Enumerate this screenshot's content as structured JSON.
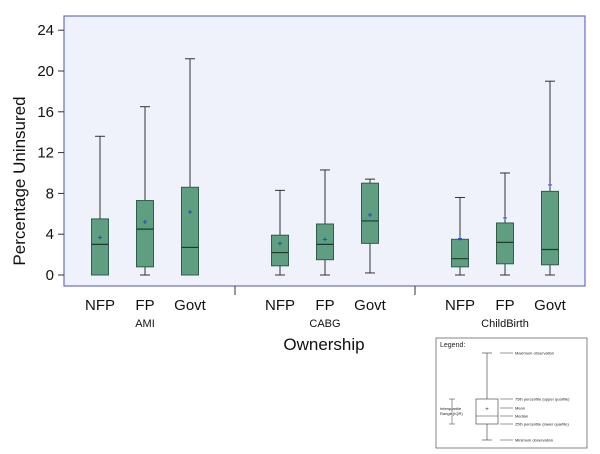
{
  "chart_data": {
    "type": "box",
    "xlabel": "Ownership",
    "ylabel": "Percentage  Uninsured",
    "ylim": [
      -1,
      25
    ],
    "yticks": [
      "0",
      "4",
      "8",
      "12",
      "16",
      "20",
      "24"
    ],
    "grid": false,
    "colors": {
      "plot_bg": "#eff1fb",
      "plot_border": "#6a6fbf",
      "box_fill": "#5f9e80",
      "box_edge": "#2f5f4a",
      "mean_marker": "#2244cc"
    },
    "groups": [
      {
        "label": "AMI",
        "boxes": [
          {
            "category": "NFP",
            "min": 0,
            "q1": 0,
            "median": 3.0,
            "q3": 5.5,
            "max": 13.6,
            "mean": 3.7
          },
          {
            "category": "FP",
            "min": 0,
            "q1": 0.8,
            "median": 4.5,
            "q3": 7.3,
            "max": 16.5,
            "mean": 5.2
          },
          {
            "category": "Govt",
            "min": 0,
            "q1": 0,
            "median": 2.7,
            "q3": 8.6,
            "max": 21.2,
            "mean": 6.2
          }
        ]
      },
      {
        "label": "CABG",
        "boxes": [
          {
            "category": "NFP",
            "min": 0,
            "q1": 0.9,
            "median": 2.2,
            "q3": 3.9,
            "max": 8.3,
            "mean": 3.1
          },
          {
            "category": "FP",
            "min": 0,
            "q1": 1.5,
            "median": 3.0,
            "q3": 5.0,
            "max": 10.3,
            "mean": 3.5
          },
          {
            "category": "Govt",
            "min": 0.2,
            "q1": 3.1,
            "median": 5.3,
            "q3": 9.0,
            "max": 9.4,
            "mean": 5.9
          }
        ]
      },
      {
        "label": "ChildBirth",
        "boxes": [
          {
            "category": "NFP",
            "min": 0,
            "q1": 0.8,
            "median": 1.6,
            "q3": 3.5,
            "max": 7.6,
            "mean": 3.6
          },
          {
            "category": "FP",
            "min": 0,
            "q1": 1.1,
            "median": 3.2,
            "q3": 5.1,
            "max": 10.0,
            "mean": 5.6
          },
          {
            "category": "Govt",
            "min": 0,
            "q1": 1.0,
            "median": 2.5,
            "q3": 8.2,
            "max": 19.0,
            "mean": 8.8
          }
        ]
      }
    ],
    "legend": {
      "title": "Legend:",
      "position": "bottom-right",
      "labels": {
        "max": "Maximum observation",
        "q3": "75th percentile (upper quartile)",
        "mean": "Mean",
        "median": "Median",
        "q1": "25th percentile (lower quartile)",
        "min": "Minimum observation",
        "iqr_line1": "Interquartile",
        "iqr_line2": "Range (IQR)"
      }
    }
  }
}
